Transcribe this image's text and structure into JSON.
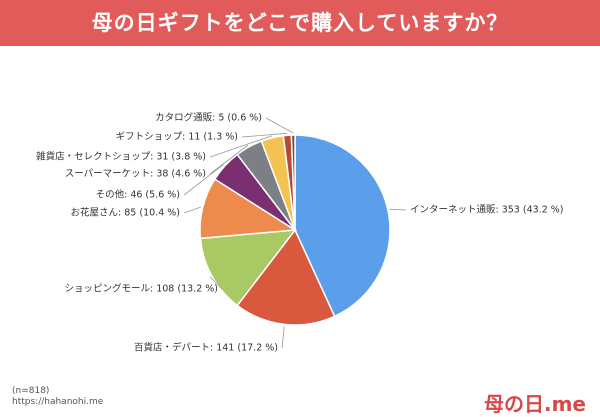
{
  "chart_data": {
    "type": "pie",
    "title": "母の日ギフトをどこで購入していますか？",
    "values": [
      353,
      141,
      108,
      85,
      46,
      38,
      31,
      11,
      5
    ],
    "value_labels": [
      "インターネット通販: 353 (43.2 %)",
      "百貨店・デパート: 141 (17.2 %)",
      "ショッピングモール: 108 (13.2 %)",
      "お花屋さん: 85 (10.4 %)",
      "その他: 46 (5.6 %)",
      "スーパーマーケット: 38 (4.6 %)",
      "雑貨店・セレクトショップ: 31 (3.8 %)",
      "ギフトショップ: 11 (1.3 %)",
      "カタログ通販: 5 (0.6 %)"
    ],
    "colors": [
      "#5b9ee9",
      "#d8593d",
      "#a8c964",
      "#ec8b4c",
      "#7a2f70",
      "#7c8086",
      "#f2c350",
      "#b5473b",
      "#7a4b2b"
    ],
    "note": "(n=818)",
    "source": "https://hahanohi.me",
    "logo": "母の日.me"
  }
}
